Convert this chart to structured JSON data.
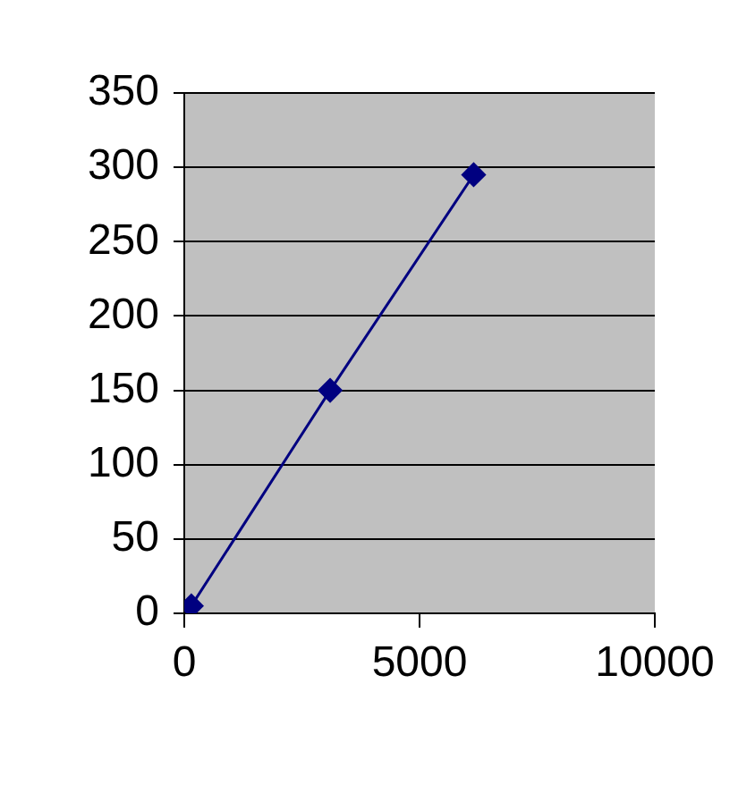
{
  "chart_data": {
    "type": "line",
    "x": [
      150,
      3100,
      6150
    ],
    "series": [
      {
        "color": "#000080",
        "values": [
          5,
          150,
          295
        ]
      }
    ],
    "xlim": [
      0,
      10000
    ],
    "xticks": [
      0,
      5000,
      10000
    ],
    "ylim": [
      0,
      350
    ],
    "yticks": [
      0,
      50,
      100,
      150,
      200,
      250,
      300,
      350
    ],
    "grid": "y",
    "legend": false,
    "marker": "diamond",
    "line_style": "solid"
  }
}
